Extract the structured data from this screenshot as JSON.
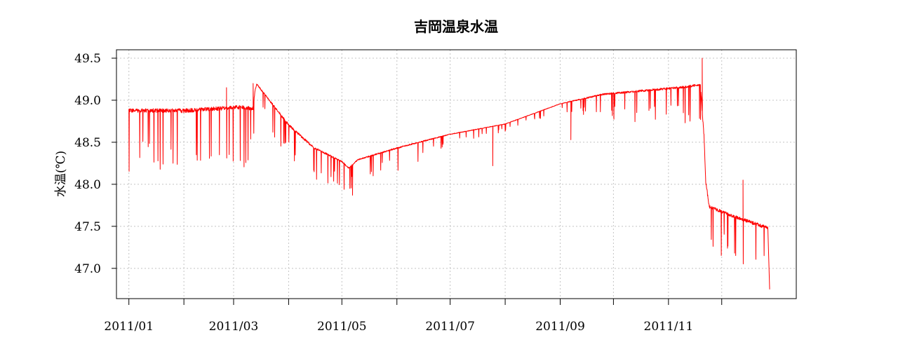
{
  "chart_data": {
    "type": "line",
    "title": "吉岡温泉水温",
    "xlabel": "",
    "ylabel": "水温(℃)",
    "xlim": [
      "2010-12-25",
      "2012-01-12"
    ],
    "ylim": [
      46.64,
      49.6
    ],
    "grid": true,
    "grid_style": "dotted",
    "x_ticks": [
      "2011-01-01",
      "2011-02-01",
      "2011-03-01",
      "2011-04-01",
      "2011-05-01",
      "2011-06-01",
      "2011-07-01",
      "2011-08-01",
      "2011-09-01",
      "2011-10-01",
      "2011-11-01",
      "2011-12-01"
    ],
    "x_tick_labels": [
      "2011/01",
      "",
      "2011/03",
      "",
      "2011/05",
      "",
      "2011/07",
      "",
      "2011/09",
      "",
      "2011/11",
      ""
    ],
    "y_ticks": [
      47.0,
      47.5,
      48.0,
      48.5,
      49.0,
      49.5
    ],
    "y_tick_labels": [
      "47.0",
      "47.5",
      "48.0",
      "48.5",
      "49.0",
      "49.5"
    ],
    "series": [
      {
        "color": "#ff0000",
        "baseline": {
          "x": [
            "2011-01-01",
            "2011-02-01",
            "2011-03-05",
            "2011-03-12",
            "2011-03-13",
            "2011-03-14",
            "2011-04-01",
            "2011-04-15",
            "2011-05-01",
            "2011-05-05",
            "2011-05-10",
            "2011-06-01",
            "2011-07-01",
            "2011-08-01",
            "2011-09-01",
            "2011-09-25",
            "2011-10-15",
            "2011-11-10",
            "2011-11-19",
            "2011-11-21",
            "2011-11-22",
            "2011-11-24",
            "2011-12-10",
            "2011-12-27"
          ],
          "y": [
            48.9,
            48.9,
            48.94,
            48.92,
            49.12,
            49.2,
            48.72,
            48.45,
            48.28,
            48.2,
            48.3,
            48.44,
            48.6,
            48.72,
            48.96,
            49.08,
            49.12,
            49.17,
            49.2,
            48.6,
            48.05,
            47.75,
            47.62,
            47.5
          ]
        },
        "lower_envelope": {
          "x": [
            "2011-01-01",
            "2011-02-01",
            "2011-03-05",
            "2011-03-12",
            "2011-03-13",
            "2011-03-14",
            "2011-04-01",
            "2011-04-15",
            "2011-05-01",
            "2011-05-05",
            "2011-05-10",
            "2011-06-01",
            "2011-07-01",
            "2011-08-01",
            "2011-09-01",
            "2011-09-25",
            "2011-10-15",
            "2011-11-10",
            "2011-11-19",
            "2011-11-21",
            "2011-11-22",
            "2011-11-24",
            "2011-12-10",
            "2011-12-27"
          ],
          "y": [
            48.15,
            48.05,
            48.2,
            48.2,
            48.8,
            48.95,
            48.25,
            48.05,
            47.95,
            47.9,
            48.05,
            48.15,
            48.45,
            48.62,
            48.86,
            48.75,
            48.72,
            48.72,
            48.75,
            47.8,
            47.35,
            47.15,
            47.0,
            46.8
          ]
        },
        "peaks": [
          {
            "x": "2011-02-25",
            "y": 49.15
          },
          {
            "x": "2011-03-12",
            "y": 49.2
          },
          {
            "x": "2011-11-20",
            "y": 49.5
          },
          {
            "x": "2011-12-13",
            "y": 48.05
          }
        ],
        "troughs": [
          {
            "x": "2011-05-07",
            "y": 47.87
          },
          {
            "x": "2011-07-25",
            "y": 48.22
          },
          {
            "x": "2011-09-07",
            "y": 48.53
          },
          {
            "x": "2011-12-28",
            "y": 46.75
          }
        ]
      }
    ]
  }
}
